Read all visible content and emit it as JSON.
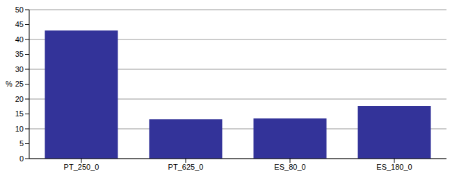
{
  "chart_data": {
    "type": "bar",
    "y_label": "%",
    "categories": [
      "PT_250_0",
      "PT_625_0",
      "ES_80_0",
      "ES_180_0"
    ],
    "values": [
      43,
      13.2,
      13.5,
      17.7
    ],
    "color": "#333399",
    "ylim": [
      0,
      50
    ],
    "yticks": [
      0,
      5,
      10,
      15,
      20,
      25,
      30,
      35,
      40,
      45,
      50
    ],
    "grid": true
  }
}
